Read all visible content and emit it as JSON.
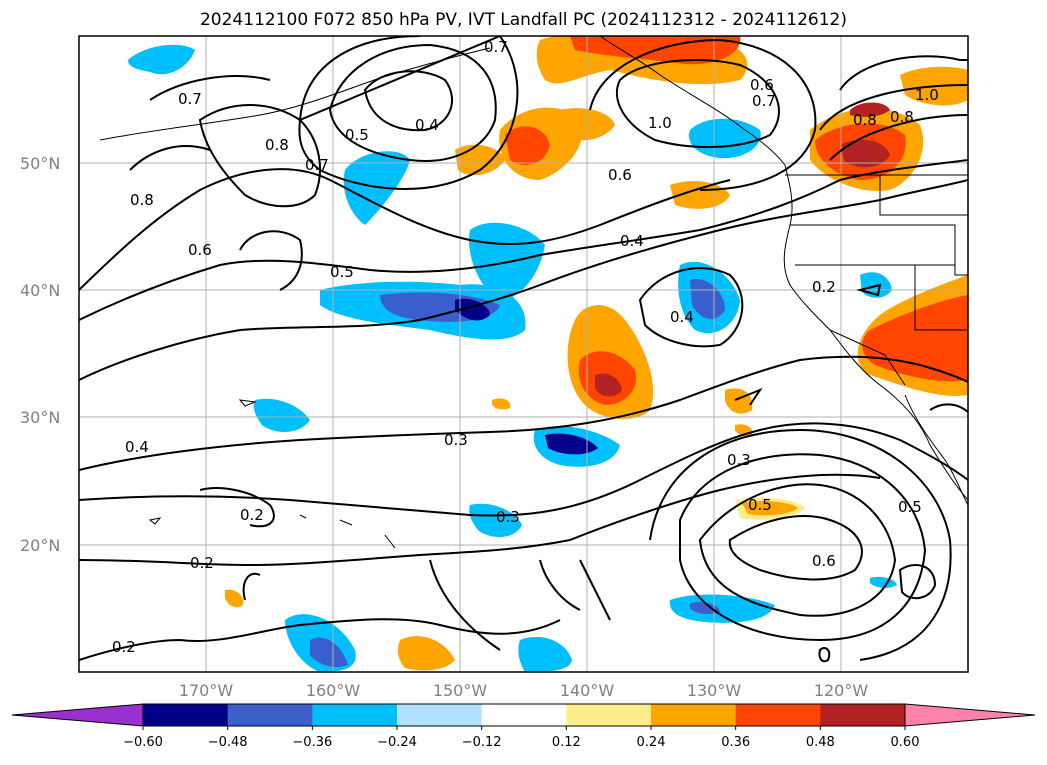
{
  "title": "2024112100 F072 850 hPa PV, IVT Landfall PC (2024112312 - 2024112612)",
  "lat_labels": [
    "50°N",
    "40°N",
    "30°N",
    "20°N"
  ],
  "lon_labels": [
    "170°W",
    "160°W",
    "150°W",
    "140°W",
    "130°W",
    "120°W"
  ],
  "colorbar": {
    "ticks": [
      "−0.60",
      "−0.48",
      "−0.36",
      "−0.24",
      "−0.12",
      "0.12",
      "0.24",
      "0.36",
      "0.48",
      "0.60"
    ],
    "colors": [
      "#9b30d0",
      "#00008b",
      "#3a5fcd",
      "#00bfff",
      "#b0e2ff",
      "#ffffff",
      "#ffec8b",
      "#ffa500",
      "#ff4500",
      "#b22222",
      "#ff82ab"
    ]
  },
  "contour_labels": [
    "0.7",
    "0.7",
    "0.5",
    "0.4",
    "1.0",
    "0.6",
    "0.7",
    "0.8",
    "1.0",
    "0.8",
    "0.8",
    "0.7",
    "0.6",
    "0.8",
    "0.5",
    "0.6",
    "0.4",
    "0.2",
    "0.4",
    "0.3",
    "0.4",
    "0.3",
    "0.5",
    "0.2",
    "0.2",
    "0.3",
    "0.5",
    "0.6",
    "0.2"
  ],
  "chart_data": {
    "type": "map",
    "title": "2024112100 F072 850 hPa PV, IVT Landfall PC (2024112312 - 2024112612)",
    "region": "North Pacific / western North America",
    "lat_range": [
      10,
      60
    ],
    "lon_range": [
      -180,
      -110
    ],
    "fill_levels": [
      -0.6,
      -0.48,
      -0.36,
      -0.24,
      -0.12,
      0.12,
      0.24,
      0.36,
      0.48,
      0.6
    ],
    "contour_values_labeled": [
      0.2,
      0.3,
      0.4,
      0.5,
      0.6,
      0.7,
      0.8,
      1.0
    ]
  }
}
